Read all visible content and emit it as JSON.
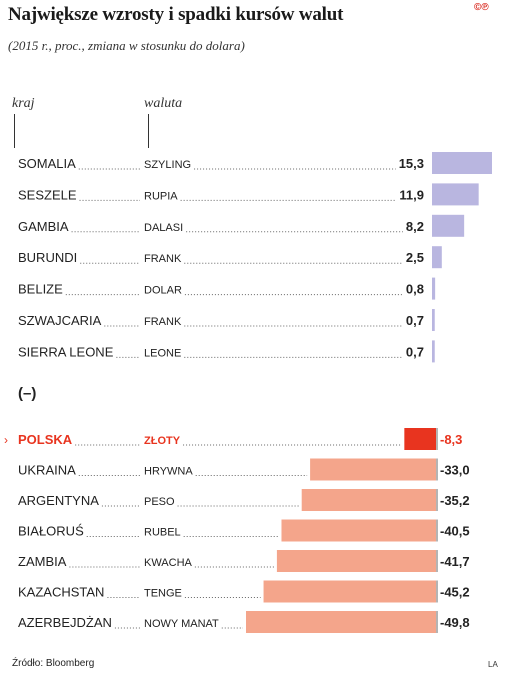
{
  "header": {
    "title": "Największe wzrosty i spadki kursów walut",
    "logo": "©℗",
    "subtitle": "(2015 r., proc., zmiana w stosunku do dolara)",
    "col_country": "kraj",
    "col_currency": "waluta"
  },
  "chart_data": {
    "type": "bar",
    "orientation": "horizontal",
    "title": "Największe wzrosty i spadki kursów walut",
    "subtitle": "(2015 r., proc., zmiana w stosunku do dolara)",
    "negative_section_label": "(–)",
    "colors": {
      "positive": "#b9b6e0",
      "negative": "#f4a58b",
      "highlight": "#e8341f",
      "highlight_text": "#e8341f"
    },
    "positive": [
      {
        "country": "SOMALIA",
        "currency": "SZYLING",
        "value": 15.3,
        "label": "15,3"
      },
      {
        "country": "SESZELE",
        "currency": "RUPIA",
        "value": 11.9,
        "label": "11,9"
      },
      {
        "country": "GAMBIA",
        "currency": "DALASI",
        "value": 8.2,
        "label": "8,2"
      },
      {
        "country": "BURUNDI",
        "currency": "FRANK",
        "value": 2.5,
        "label": "2,5"
      },
      {
        "country": "BELIZE",
        "currency": "DOLAR",
        "value": 0.8,
        "label": "0,8"
      },
      {
        "country": "SZWAJCARIA",
        "currency": "FRANK",
        "value": 0.7,
        "label": "0,7"
      },
      {
        "country": "SIERRA LEONE",
        "currency": "LEONE",
        "value": 0.7,
        "label": "0,7"
      }
    ],
    "negative": [
      {
        "country": "POLSKA",
        "currency": "ZŁOTY",
        "value": -8.3,
        "label": "-8,3",
        "highlight": true
      },
      {
        "country": "UKRAINA",
        "currency": "HRYWNA",
        "value": -33.0,
        "label": "-33,0"
      },
      {
        "country": "ARGENTYNA",
        "currency": "PESO",
        "value": -35.2,
        "label": "-35,2"
      },
      {
        "country": "BIAŁORUŚ",
        "currency": "RUBEL",
        "value": -40.5,
        "label": "-40,5"
      },
      {
        "country": "ZAMBIA",
        "currency": "KWACHA",
        "value": -41.7,
        "label": "-41,7"
      },
      {
        "country": "KAZACHSTAN",
        "currency": "TENGE",
        "value": -45.2,
        "label": "-45,2"
      },
      {
        "country": "AZERBEJDŻAN",
        "currency": "NOWY MANAT",
        "value": -49.8,
        "label": "-49,8"
      }
    ]
  },
  "footer": {
    "source": "Źródło: Bloomberg",
    "author": "LA"
  }
}
